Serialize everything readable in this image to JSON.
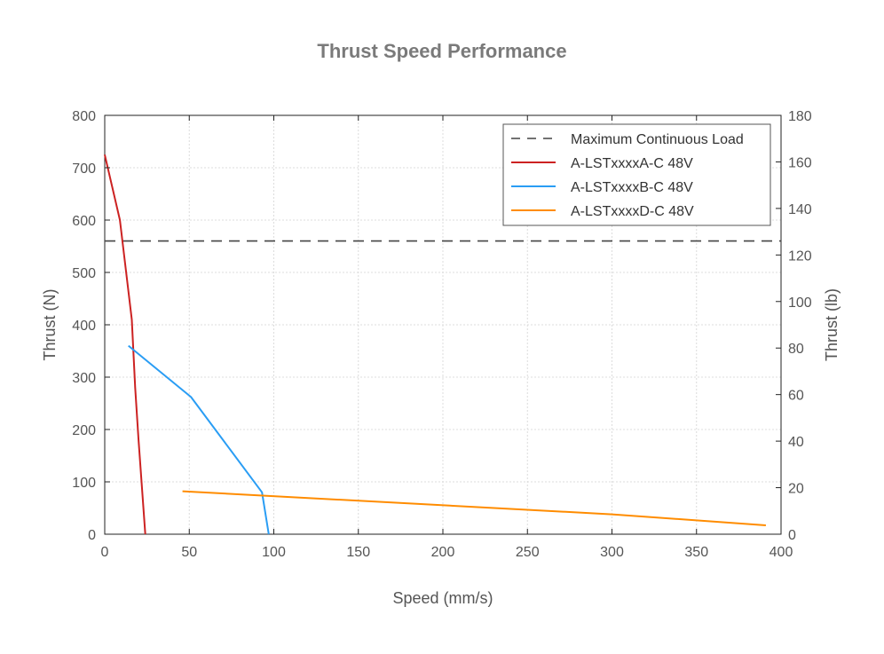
{
  "chart_data": {
    "type": "line",
    "title": "Thrust Speed Performance",
    "xlabel": "Speed (mm/s)",
    "ylabel": "Thrust (N)",
    "y2label": "Thrust (lb)",
    "xlim": [
      0,
      400
    ],
    "ylim": [
      0,
      800
    ],
    "y2lim": [
      0,
      180
    ],
    "x_ticks": [
      "0",
      "50",
      "100",
      "150",
      "200",
      "250",
      "300",
      "350",
      "400"
    ],
    "y_ticks": [
      "0",
      "100",
      "200",
      "300",
      "400",
      "500",
      "600",
      "700",
      "800"
    ],
    "y2_ticks": [
      "0",
      "20",
      "40",
      "60",
      "80",
      "100",
      "120",
      "140",
      "160",
      "180"
    ],
    "grid": true,
    "legend_position": "top-right",
    "reference_line": {
      "name": "Maximum Continuous Load",
      "y": 560,
      "color": "#444444",
      "style": "dashed"
    },
    "series": [
      {
        "name": "A-LSTxxxxA-C 48V",
        "color": "#cc2222",
        "x": [
          0,
          9,
          16,
          18,
          20,
          22,
          24
        ],
        "y": [
          725,
          600,
          410,
          280,
          180,
          90,
          0
        ]
      },
      {
        "name": "A-LSTxxxxB-C 48V",
        "color": "#2a9df4",
        "x": [
          14,
          51,
          93,
          97
        ],
        "y": [
          360,
          262,
          80,
          0
        ]
      },
      {
        "name": "A-LSTxxxxD-C 48V",
        "color": "#ff8c00",
        "x": [
          46,
          300,
          391
        ],
        "y": [
          82,
          38,
          17
        ]
      }
    ]
  }
}
